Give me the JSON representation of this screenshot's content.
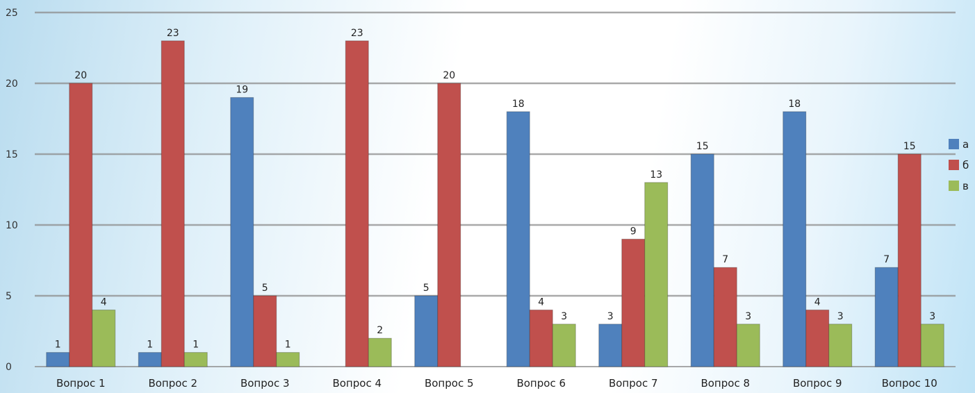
{
  "chart_data": {
    "type": "bar",
    "categories": [
      "Вопрос 1",
      "Вопрос 2",
      "Вопрос 3",
      "Вопрос 4",
      "Вопрос 5",
      "Вопрос 6",
      "Вопрос 7",
      "Вопрос 8",
      "Вопрос 9",
      "Вопрос 10"
    ],
    "series": [
      {
        "name": "а",
        "color": "#4f81bd",
        "values": [
          1,
          1,
          19,
          0,
          5,
          18,
          3,
          15,
          18,
          7
        ]
      },
      {
        "name": "б",
        "color": "#c0504d",
        "values": [
          20,
          23,
          5,
          23,
          20,
          4,
          9,
          7,
          4,
          15
        ]
      },
      {
        "name": "в",
        "color": "#9bbb59",
        "values": [
          4,
          1,
          1,
          2,
          0,
          3,
          13,
          3,
          3,
          3
        ]
      }
    ],
    "data_labels": [
      [
        "1",
        "1",
        "19",
        "",
        "5",
        "18",
        "3",
        "15",
        "18",
        "7"
      ],
      [
        "20",
        "23",
        "5",
        "23",
        "20",
        "4",
        "9",
        "7",
        "4",
        "15"
      ],
      [
        "4",
        "1",
        "1",
        "2",
        "",
        "3",
        "13",
        "3",
        "3",
        "3"
      ]
    ],
    "y_ticks": [
      "0",
      "5",
      "10",
      "15",
      "20",
      "25"
    ],
    "ylim": [
      0,
      25
    ],
    "grid": true,
    "legend_position": "right",
    "title": "",
    "xlabel": "",
    "ylabel": ""
  }
}
